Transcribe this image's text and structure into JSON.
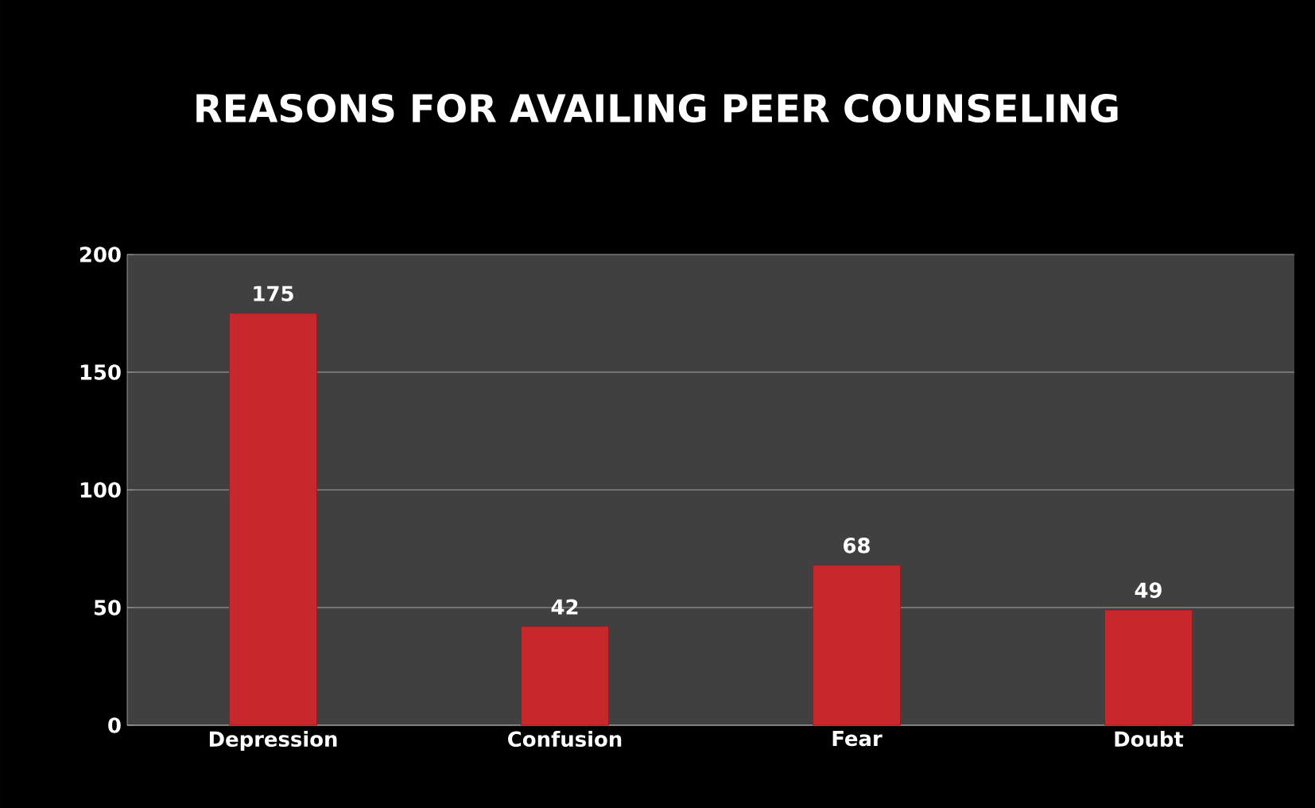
{
  "chart_data": {
    "type": "bar",
    "title": "REASONS FOR AVAILING PEER COUNSELING",
    "categories": [
      "Depression",
      "Confusion",
      "Fear",
      "Doubt"
    ],
    "values": [
      175,
      42,
      68,
      49
    ],
    "color": "#c8282c",
    "ylim": [
      0,
      200
    ],
    "yticks": [
      0,
      50,
      100,
      150,
      200
    ],
    "grid": "y",
    "data_labels": true
  }
}
